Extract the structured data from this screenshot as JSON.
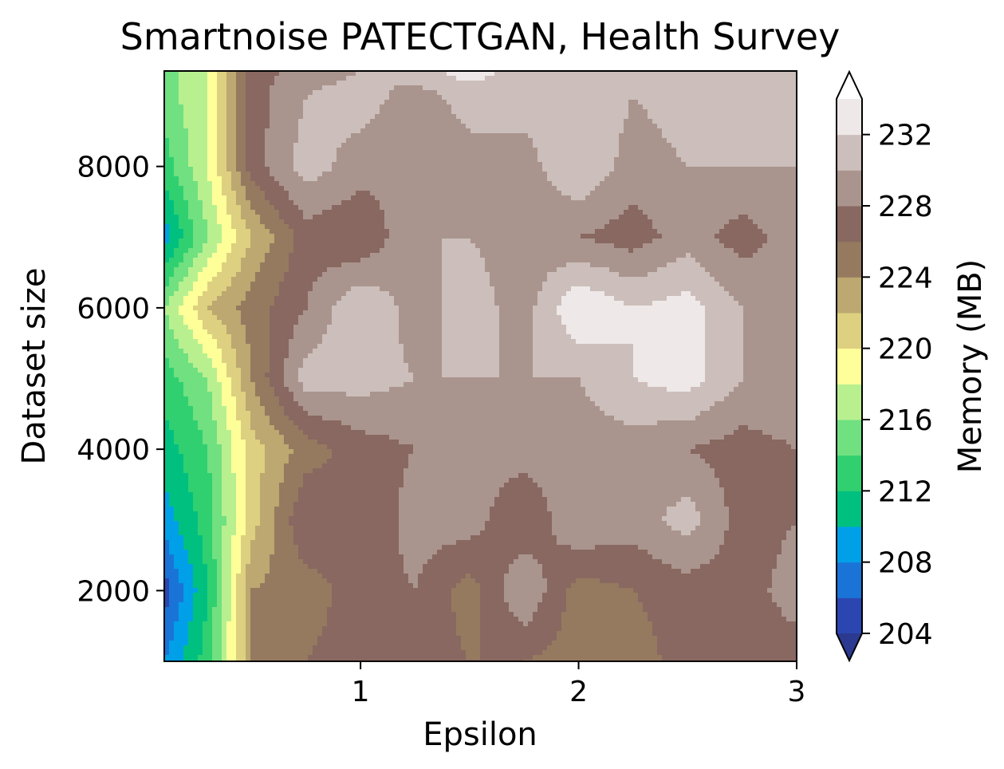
{
  "chart_data": {
    "type": "heatmap",
    "title": "Smartnoise PATECTGAN, Health Survey",
    "xlabel": "Epsilon",
    "ylabel": "Dataset size",
    "colorbar_label": "Memory (MB)",
    "xlim": [
      0.1,
      3.0
    ],
    "ylim": [
      1000,
      9350
    ],
    "x_ticks": [
      1,
      2,
      3
    ],
    "y_ticks": [
      2000,
      4000,
      6000,
      8000
    ],
    "colorbar_ticks": [
      204,
      208,
      212,
      216,
      220,
      224,
      228,
      232
    ],
    "levels": [
      204,
      206,
      208,
      210,
      212,
      214,
      216,
      218,
      220,
      222,
      224,
      226,
      228,
      230,
      232,
      234
    ],
    "extend": "both",
    "under_color": "#2b3990",
    "over_color": "#ffffff",
    "band_colors": [
      "#2b46b0",
      "#1a74d8",
      "#00a0e8",
      "#00c080",
      "#30d070",
      "#70e080",
      "#b8f090",
      "#ffff99",
      "#ddd080",
      "#bca870",
      "#957a60",
      "#886860",
      "#aa958e",
      "#ccbeba",
      "#eee8e8"
    ],
    "x": [
      0.1,
      0.3,
      0.5,
      0.75,
      1.0,
      1.25,
      1.5,
      1.75,
      2.0,
      2.25,
      2.5,
      2.75,
      3.0
    ],
    "y": [
      1000,
      2000,
      3000,
      4000,
      5000,
      6000,
      7000,
      8000,
      9000,
      9350
    ],
    "z": [
      [
        208,
        213,
        224,
        226,
        227,
        227,
        226,
        226,
        225,
        225,
        227,
        227,
        227
      ],
      [
        205,
        212,
        224,
        225,
        227,
        228,
        225,
        230,
        225,
        226,
        227,
        227,
        229
      ],
      [
        209,
        213,
        221,
        228,
        226,
        229,
        229,
        226,
        230,
        229,
        231,
        227,
        228
      ],
      [
        211,
        214,
        221,
        225,
        227,
        228,
        229,
        229,
        229,
        229,
        228,
        227,
        228
      ],
      [
        213,
        216,
        224,
        231,
        231,
        230,
        230,
        230,
        230,
        232,
        233,
        230,
        230
      ],
      [
        216,
        222,
        225,
        228,
        232,
        229,
        231,
        229,
        234,
        232,
        233,
        230,
        229
      ],
      [
        209,
        216,
        222,
        227,
        226,
        230,
        230,
        229,
        228,
        227,
        229,
        227,
        229
      ],
      [
        213,
        218,
        227,
        231,
        229,
        228,
        229,
        229,
        232,
        229,
        230,
        230,
        230
      ],
      [
        215,
        218,
        227,
        230,
        231,
        229,
        231,
        231,
        232,
        230,
        231,
        231,
        231
      ],
      [
        215,
        218,
        227,
        229,
        230,
        231,
        233,
        231,
        231,
        231,
        231,
        231,
        231
      ]
    ]
  }
}
